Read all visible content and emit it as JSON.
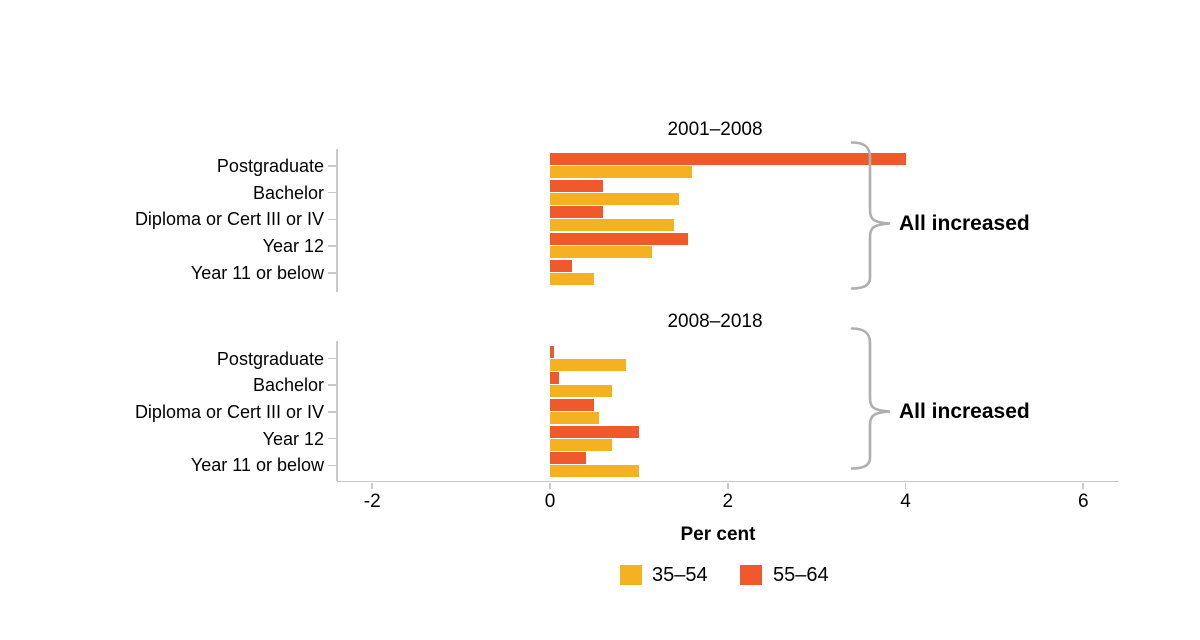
{
  "chart_data": {
    "type": "bar",
    "orientation": "horizontal",
    "title": "",
    "xlabel": "Per cent",
    "x_ticks": [
      -2,
      0,
      2,
      4,
      6
    ],
    "xlim": [
      -2.4,
      6.4
    ],
    "grid": false,
    "legend_position": "bottom",
    "categories": [
      "Postgraduate",
      "Bachelor",
      "Diploma or Cert III or IV",
      "Year 12",
      "Year 11 or below"
    ],
    "panels": [
      {
        "title": "2001–2008",
        "annotation": "All increased",
        "series": [
          {
            "name": "35–54",
            "values": [
              1.6,
              1.45,
              1.4,
              1.15,
              0.5
            ]
          },
          {
            "name": "55–64",
            "values": [
              4.0,
              0.6,
              0.6,
              1.55,
              0.25
            ]
          }
        ]
      },
      {
        "title": "2008–2018",
        "annotation": "All increased",
        "series": [
          {
            "name": "35–54",
            "values": [
              0.85,
              0.7,
              0.55,
              0.7,
              1.0
            ]
          },
          {
            "name": "55–64",
            "values": [
              0.05,
              0.1,
              0.5,
              1.0,
              0.4
            ]
          }
        ]
      }
    ],
    "legend": [
      {
        "label": "35–54",
        "color": "#F4B223"
      },
      {
        "label": "55–64",
        "color": "#F0592B"
      }
    ],
    "colors": {
      "axis": "#C9C9C9",
      "brace": "#AFAFAF",
      "text": "#000000"
    }
  }
}
